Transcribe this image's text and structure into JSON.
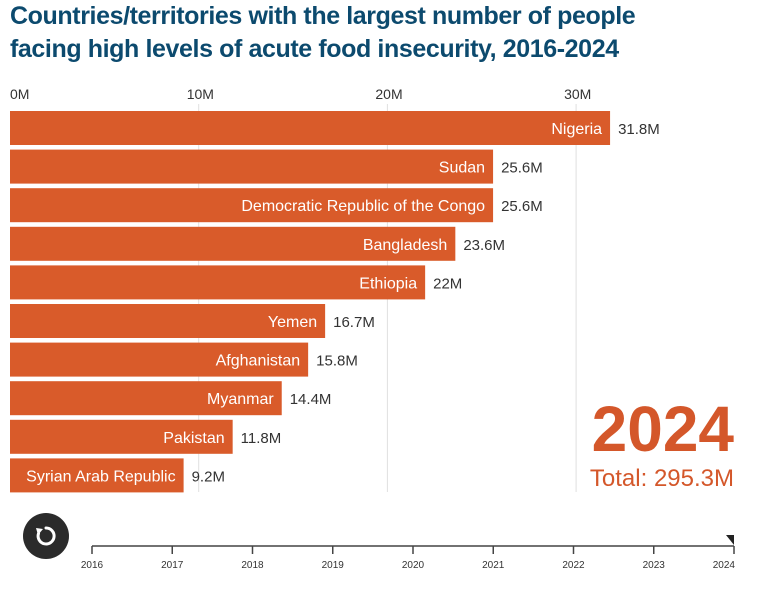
{
  "title": {
    "line1": "Countries/territories with the largest number of people",
    "line2": "facing high levels of acute food insecurity, 2016-2024"
  },
  "colors": {
    "bar": "#d95b2a",
    "title": "#0c4a6e",
    "accent": "#d4572a",
    "gridline": "#e0e0e0",
    "text": "#333333"
  },
  "chart_data": {
    "type": "bar",
    "orientation": "horizontal",
    "title": "Countries/territories with the largest number of people facing high levels of acute food insecurity, 2016-2024",
    "xlabel": "",
    "ylabel": "",
    "xlim": [
      0,
      34
    ],
    "x_ticks": [
      0,
      10,
      20,
      30
    ],
    "x_tick_labels": [
      "0M",
      "10M",
      "20M",
      "30M"
    ],
    "grid": true,
    "categories": [
      "Nigeria",
      "Sudan",
      "Democratic Republic of the Congo",
      "Bangladesh",
      "Ethiopia",
      "Yemen",
      "Afghanistan",
      "Myanmar",
      "Pakistan",
      "Syrian Arab Republic"
    ],
    "values": [
      31.8,
      25.6,
      25.6,
      23.6,
      22,
      16.7,
      15.8,
      14.4,
      11.8,
      9.2
    ],
    "value_labels": [
      "31.8M",
      "25.6M",
      "25.6M",
      "23.6M",
      "22M",
      "16.7M",
      "15.8M",
      "14.4M",
      "11.8M",
      "9.2M"
    ],
    "units": "million people",
    "current_year": "2024",
    "total_label": "Total: 295.3M"
  },
  "overlay": {
    "year": "2024",
    "total": "Total: 295.3M"
  },
  "controls": {
    "replay_icon": "replay-icon",
    "timeline": {
      "years": [
        "2016",
        "2017",
        "2018",
        "2019",
        "2020",
        "2021",
        "2022",
        "2023",
        "2024"
      ],
      "selected": "2024"
    }
  }
}
